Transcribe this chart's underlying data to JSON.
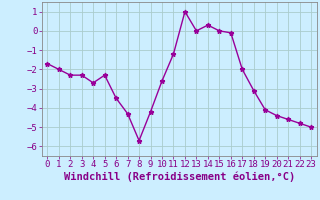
{
  "x": [
    0,
    1,
    2,
    3,
    4,
    5,
    6,
    7,
    8,
    9,
    10,
    11,
    12,
    13,
    14,
    15,
    16,
    17,
    18,
    19,
    20,
    21,
    22,
    23
  ],
  "y": [
    -1.7,
    -2.0,
    -2.3,
    -2.3,
    -2.7,
    -2.3,
    -3.5,
    -4.3,
    -5.7,
    -4.2,
    -2.6,
    -1.2,
    1.0,
    0.0,
    0.3,
    0.0,
    -0.1,
    -2.0,
    -3.1,
    -4.1,
    -4.4,
    -4.6,
    -4.8,
    -5.0
  ],
  "line_color": "#990099",
  "marker": "*",
  "marker_size": 3.5,
  "bg_color": "#cceeff",
  "grid_color": "#aadddd",
  "xlabel": "Windchill (Refroidissement éolien,°C)",
  "ylabel": "",
  "xlim": [
    -0.5,
    23.5
  ],
  "ylim": [
    -6.5,
    1.5
  ],
  "yticks": [
    -6,
    -5,
    -4,
    -3,
    -2,
    -1,
    0,
    1
  ],
  "xticks": [
    0,
    1,
    2,
    3,
    4,
    5,
    6,
    7,
    8,
    9,
    10,
    11,
    12,
    13,
    14,
    15,
    16,
    17,
    18,
    19,
    20,
    21,
    22,
    23
  ],
  "tick_color": "#880088",
  "tick_labelsize": 6.5,
  "xlabel_fontsize": 7.5,
  "xlabel_fontweight": "bold",
  "xlabel_color": "#880088",
  "line_width": 1.0,
  "spine_color": "#888888",
  "grid_line_color": "#bbdddd"
}
